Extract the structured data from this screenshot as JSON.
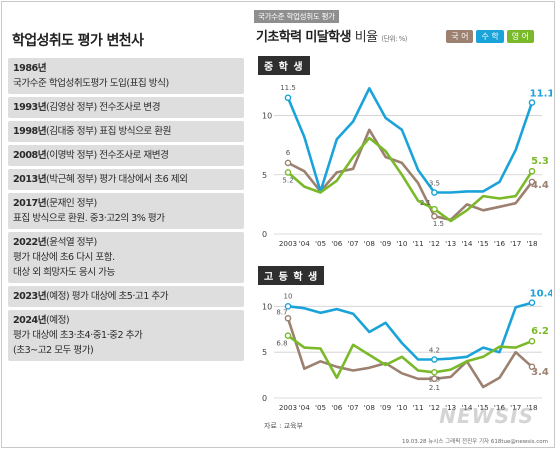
{
  "left": {
    "title": "학업성취도 평가 변천사",
    "timeline": [
      {
        "year": "1986년",
        "text": "",
        "lines": [
          "국가수준 학업성취도평가 도입(표집 방식)"
        ]
      },
      {
        "year": "1993년",
        "text": "(김영삼 정부) 전수조사로 변경",
        "lines": []
      },
      {
        "year": "1998년",
        "text": "(김대중 정부) 표집 방식으로 환원",
        "lines": []
      },
      {
        "year": "2008년",
        "text": "(이명박 정부) 전수조사로 재변경",
        "lines": []
      },
      {
        "year": "2013년",
        "text": "(박근혜 정부) 평가 대상에서 초6 제외",
        "lines": []
      },
      {
        "year": "2017년",
        "text": "(문재인 정부)",
        "lines": [
          "표집 방식으로 환원. 중3·고2의 3% 평가"
        ]
      },
      {
        "year": "2022년",
        "text": "(윤석열 정부)",
        "lines": [
          "평가 대상에 초6 다시 포함.",
          "대상 외 희망자도 응시 가능"
        ]
      },
      {
        "year": "2023년",
        "text": "(예정)  평가 대상에 초5·고1 추가",
        "lines": []
      },
      {
        "year": "2024년",
        "text": "(예정)",
        "lines": [
          "평가 대상에 초3·초4·중1·중2 추가",
          "(초3~고2 모두 평가)"
        ]
      }
    ]
  },
  "right": {
    "kicker": "국가수준 학업성취도 평가",
    "title": "기초학력 미달학생",
    "title_suffix": "비율",
    "unit": "(단위: %)",
    "legend": [
      {
        "label": "국 어",
        "color": "#9c8070"
      },
      {
        "label": "수 학",
        "color": "#1aa3d9"
      },
      {
        "label": "영 어",
        "color": "#7ab929"
      }
    ],
    "source": "자료 : 교육부",
    "credit": "19.03.28  뉴시스 그래픽  전진우 기자  618tue@newsis.com",
    "watermark": "NEWSIS"
  },
  "chart_data": [
    {
      "type": "line",
      "title": "중 학 생",
      "x": [
        "2003",
        "'04",
        "'05",
        "'06",
        "'07",
        "'08",
        "'09",
        "'10",
        "'11",
        "'12",
        "'13",
        "'14",
        "'15",
        "'16",
        "'17",
        "'18"
      ],
      "ylim": [
        0,
        13
      ],
      "yticks": [
        0,
        5,
        10
      ],
      "series": [
        {
          "name": "국 어",
          "color": "#9c8070",
          "values": [
            6,
            5.3,
            3.6,
            5.2,
            5.5,
            8.8,
            6.5,
            6.0,
            4.3,
            1.5,
            1.2,
            2.5,
            2.0,
            2.3,
            2.6,
            4.4
          ]
        },
        {
          "name": "수 학",
          "color": "#1aa3d9",
          "values": [
            11.5,
            8.2,
            3.6,
            8.0,
            9.5,
            12.3,
            9.8,
            8.8,
            5.4,
            3.5,
            3.5,
            3.6,
            3.6,
            4.4,
            7.1,
            11.1
          ]
        },
        {
          "name": "영 어",
          "color": "#7ab929",
          "values": [
            5.2,
            4.0,
            3.5,
            4.5,
            6.5,
            8.1,
            7.0,
            5.0,
            2.8,
            2.1,
            1.1,
            2.0,
            3.2,
            3.0,
            3.2,
            5.3
          ]
        }
      ],
      "labels": [
        {
          "series": 1,
          "index": 0,
          "text": "11.5"
        },
        {
          "series": 0,
          "index": 0,
          "text": "6"
        },
        {
          "series": 2,
          "index": 0,
          "text": "5.2"
        },
        {
          "series": 1,
          "index": 9,
          "text": "3.5"
        },
        {
          "series": 2,
          "index": 9,
          "text": "2.1"
        },
        {
          "series": 0,
          "index": 9,
          "text": "1.5"
        },
        {
          "series": 1,
          "index": 15,
          "text": "11.1"
        },
        {
          "series": 2,
          "index": 15,
          "text": "5.3"
        },
        {
          "series": 0,
          "index": 15,
          "text": "4.4"
        }
      ]
    },
    {
      "type": "line",
      "title": "고 등 학 생",
      "x": [
        "2003",
        "'04",
        "'05",
        "'06",
        "'07",
        "'08",
        "'09",
        "'10",
        "'11",
        "'12",
        "'13",
        "'14",
        "'15",
        "'16",
        "'17",
        "'18"
      ],
      "ylim": [
        0,
        12
      ],
      "yticks": [
        0,
        5,
        10
      ],
      "series": [
        {
          "name": "국 어",
          "color": "#9c8070",
          "values": [
            8.7,
            3.2,
            4.0,
            3.4,
            3.0,
            3.3,
            3.8,
            2.7,
            2.1,
            2.1,
            2.3,
            4.0,
            1.2,
            2.2,
            5.0,
            3.4
          ]
        },
        {
          "name": "수 학",
          "color": "#1aa3d9",
          "values": [
            10,
            9.8,
            9.3,
            9.7,
            9.2,
            7.2,
            8.2,
            6.0,
            4.2,
            4.2,
            4.3,
            4.5,
            5.5,
            5.0,
            9.9,
            10.4
          ]
        },
        {
          "name": "영 어",
          "color": "#7ab929",
          "values": [
            6.8,
            5.5,
            5.4,
            2.2,
            5.8,
            4.7,
            3.6,
            4.5,
            3.0,
            2.8,
            3.1,
            4.0,
            4.5,
            5.6,
            5.5,
            6.2
          ]
        }
      ],
      "labels": [
        {
          "series": 1,
          "index": 0,
          "text": "10"
        },
        {
          "series": 0,
          "index": 0,
          "text": "8.7"
        },
        {
          "series": 2,
          "index": 0,
          "text": "6.8"
        },
        {
          "series": 1,
          "index": 9,
          "text": "4.2"
        },
        {
          "series": 2,
          "index": 9,
          "text": "2.8"
        },
        {
          "series": 0,
          "index": 9,
          "text": "2.1"
        },
        {
          "series": 1,
          "index": 15,
          "text": "10.4"
        },
        {
          "series": 2,
          "index": 15,
          "text": "6.2"
        },
        {
          "series": 0,
          "index": 15,
          "text": "3.4"
        }
      ]
    }
  ]
}
